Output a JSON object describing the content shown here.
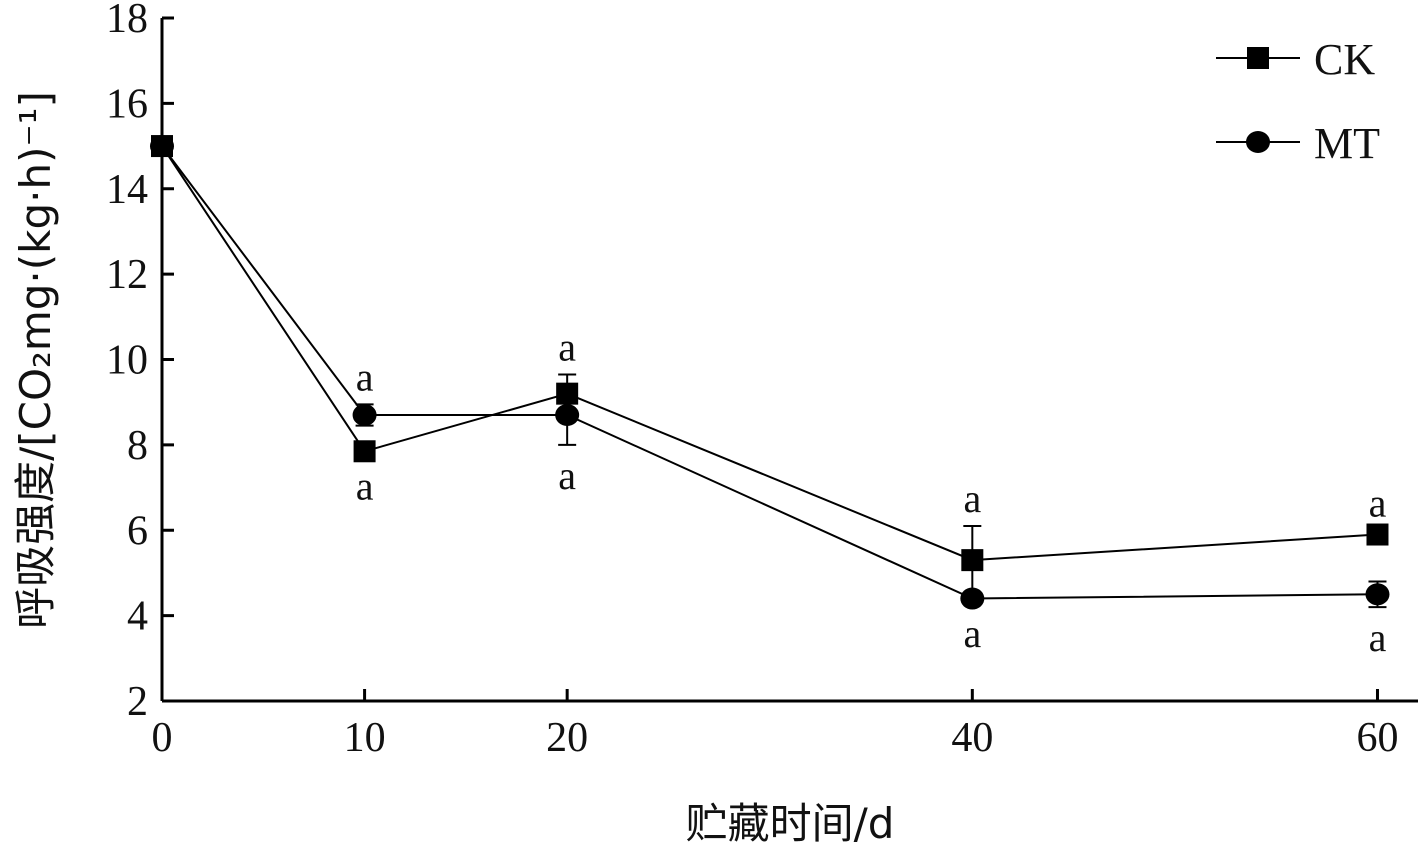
{
  "chart_data": {
    "type": "line",
    "xlabel": "贮藏时间/d",
    "ylabel": "呼吸强度/[CO₂mg·(kg·h)⁻¹]",
    "x": [
      0,
      10,
      20,
      40,
      60
    ],
    "x_ticks": [
      "0",
      "10",
      "20",
      "40",
      "60"
    ],
    "y_ticks": [
      "2",
      "4",
      "6",
      "8",
      "10",
      "12",
      "14",
      "16",
      "18"
    ],
    "xlim": [
      0,
      62
    ],
    "ylim": [
      2,
      18
    ],
    "grid": false,
    "legend_position": "top-right",
    "series": [
      {
        "name": "CK",
        "marker": "square",
        "values": [
          15.0,
          7.85,
          9.2,
          5.3,
          5.9
        ],
        "errors": [
          0.1,
          0.1,
          0.45,
          0.8,
          0.1
        ],
        "letters": [
          "",
          "a",
          "a",
          "a",
          "a"
        ],
        "letter_side": [
          "",
          "below",
          "above",
          "above",
          "above"
        ]
      },
      {
        "name": "MT",
        "marker": "circle",
        "values": [
          15.0,
          8.7,
          8.7,
          4.4,
          4.5
        ],
        "errors": [
          0.1,
          0.25,
          0.7,
          0.1,
          0.3
        ],
        "letters": [
          "",
          "a",
          "a",
          "a",
          "a"
        ],
        "letter_side": [
          "",
          "above",
          "below",
          "below",
          "below"
        ]
      }
    ]
  }
}
